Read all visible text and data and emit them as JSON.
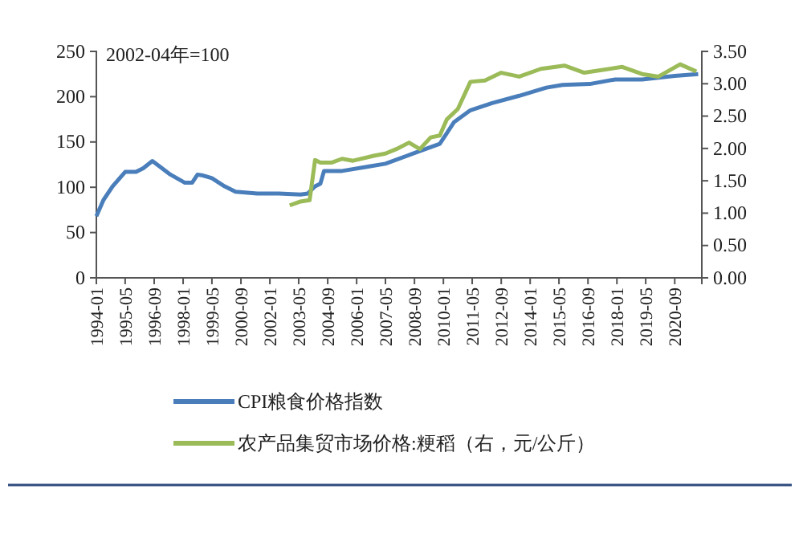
{
  "chart_data": {
    "type": "line",
    "annotations": [
      "2002-04年=100"
    ],
    "xlim": [
      "1994-01",
      "2021-12"
    ],
    "xticks": [
      "1994-01",
      "1995-05",
      "1996-09",
      "1998-01",
      "1999-05",
      "2000-09",
      "2002-01",
      "2003-05",
      "2004-09",
      "2006-01",
      "2007-05",
      "2008-09",
      "2010-01",
      "2011-05",
      "2012-09",
      "2014-01",
      "2015-05",
      "2016-09",
      "2018-01",
      "2019-05",
      "2020-09"
    ],
    "ylim": [
      0,
      250
    ],
    "yticks": [
      0,
      50,
      100,
      150,
      200,
      250
    ],
    "y2lim": [
      0,
      3.5
    ],
    "y2ticks": [
      {
        "value": 0,
        "label": "0.00"
      },
      {
        "value": 0.5,
        "label": "0.50"
      },
      {
        "value": 1,
        "label": "1.00"
      },
      {
        "value": 1.5,
        "label": "1.50"
      },
      {
        "value": 2,
        "label": "2.00"
      },
      {
        "value": 2.5,
        "label": "2.50"
      },
      {
        "value": 3,
        "label": "3.00"
      },
      {
        "value": 3.5,
        "label": "3.50"
      }
    ],
    "grid": false,
    "legend": "bottom",
    "marker": "none",
    "line_style": "solid",
    "series": [
      {
        "name": "CPI粮食价格指数",
        "color": "#4a7ebb",
        "x": [
          "1994-01",
          "1994-05",
          "1994-10",
          "1995-05",
          "1995-11",
          "1996-03",
          "1996-08",
          "1996-12",
          "1997-06",
          "1998-02",
          "1998-06",
          "1998-09",
          "1998-12",
          "1999-05",
          "1999-12",
          "2000-06",
          "2001-06",
          "2002-06",
          "2003-06",
          "2003-10",
          "2004-02",
          "2004-05",
          "2004-07",
          "2005-05",
          "2006-08",
          "2007-05",
          "2008-08",
          "2009-11",
          "2010-02",
          "2010-07",
          "2011-04",
          "2012-04",
          "2013-07",
          "2014-10",
          "2015-07",
          "2016-10",
          "2017-12",
          "2019-03",
          "2020-09",
          "2021-10"
        ],
        "values": [
          68,
          86,
          101,
          117,
          117,
          121,
          129,
          123,
          114,
          105,
          105,
          114,
          113,
          110,
          101,
          95,
          93,
          93,
          92,
          93,
          101,
          104,
          118,
          118,
          123,
          126,
          137,
          148,
          157,
          172,
          185,
          193,
          201,
          210,
          213,
          214,
          219,
          219,
          223,
          225
        ]
      },
      {
        "name": "农产品集贸市场价格:粳稻（右，元/公斤）",
        "color": "#9bbb59",
        "axis": "y2",
        "x": [
          "2002-12",
          "2003-06",
          "2003-11",
          "2004-02",
          "2004-05",
          "2004-11",
          "2005-05",
          "2005-11",
          "2006-11",
          "2007-05",
          "2007-11",
          "2008-06",
          "2008-12",
          "2009-06",
          "2009-11",
          "2010-03",
          "2010-09",
          "2011-04",
          "2011-12",
          "2012-09",
          "2013-07",
          "2014-07",
          "2015-08",
          "2016-07",
          "2018-04",
          "2019-03",
          "2019-12",
          "2020-12",
          "2021-09"
        ],
        "values": [
          1.12,
          1.18,
          1.2,
          1.82,
          1.78,
          1.78,
          1.84,
          1.81,
          1.89,
          1.92,
          1.99,
          2.09,
          1.99,
          2.17,
          2.2,
          2.45,
          2.61,
          3.03,
          3.05,
          3.17,
          3.11,
          3.23,
          3.28,
          3.17,
          3.26,
          3.15,
          3.11,
          3.3,
          3.19
        ]
      }
    ]
  }
}
